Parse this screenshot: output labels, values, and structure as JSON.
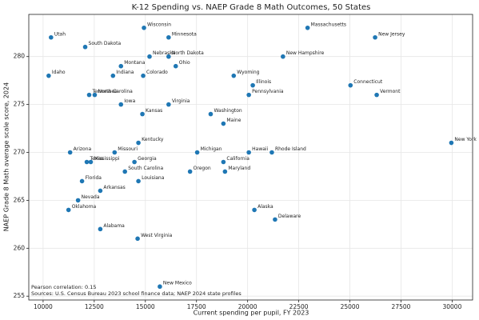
{
  "chart_data": {
    "type": "scatter",
    "title": "K-12 Spending vs. NAEP Grade 8 Math Outcomes, 50 States",
    "x_label": "Current spending per pupil, FY 2023",
    "y_label": "NAEP Grade 8 Math average scale score, 2024",
    "annotations": [
      "Pearson correlation: 0.15",
      "Sources: U.S. Census Bureau 2023 school finance data; NAEP 2024 state profiles"
    ],
    "color": "#1f77b4",
    "grid": true,
    "xlim": [
      9300,
      31000
    ],
    "ylim": [
      254.6,
      284.4
    ],
    "xticks": [
      10000,
      12500,
      15000,
      17500,
      20000,
      22500,
      25000,
      27500,
      30000
    ],
    "yticks": [
      255,
      260,
      265,
      270,
      275,
      280
    ],
    "point_labels": [
      "Utah",
      "South Dakota",
      "Wisconsin",
      "Minnesota",
      "Massachusetts",
      "New Jersey",
      "Nebraska",
      "North Dakota",
      "New Hampshire",
      "Montana",
      "Ohio",
      "Idaho",
      "Indiana",
      "Colorado",
      "Wyoming",
      "Illinois",
      "Connecticut",
      "Tennessee",
      "North Carolina",
      "Pennsylvania",
      "Vermont",
      "Iowa",
      "Virginia",
      "Kansas",
      "Washington",
      "Maine",
      "Kentucky",
      "New York",
      "Arizona",
      "Missouri",
      "Michigan",
      "Hawaii",
      "Rhode Island",
      "Texas",
      "Mississippi",
      "Georgia",
      "California",
      "South Carolina",
      "Oregon",
      "Maryland",
      "Florida",
      "Louisiana",
      "Arkansas",
      "Nevada",
      "Oklahoma",
      "Alaska",
      "Delaware",
      "Alabama",
      "West Virginia",
      "New Mexico"
    ],
    "x": [
      10388,
      12058,
      14932,
      16136,
      22932,
      26233,
      15204,
      16136,
      21728,
      13806,
      16485,
      10272,
      13417,
      14893,
      19320,
      20252,
      25029,
      12252,
      12524,
      20058,
      26311,
      13806,
      16136,
      14854,
      18194,
      18816,
      14660,
      29961,
      11320,
      13495,
      17534,
      20058,
      21184,
      12136,
      12330,
      14466,
      18816,
      14000,
      17184,
      18893,
      11903,
      14660,
      12796,
      11709,
      11243,
      20330,
      21340,
      12796,
      14621,
      15709
    ],
    "values": [
      282,
      281,
      283,
      282,
      283,
      282,
      280,
      280,
      280,
      279,
      279,
      278,
      278,
      278,
      278,
      277,
      277,
      276,
      276,
      276,
      276,
      275,
      275,
      274,
      274,
      273,
      271,
      271,
      270,
      270,
      270,
      270,
      270,
      269,
      269,
      269,
      269,
      268,
      268,
      268,
      267,
      267,
      266,
      265,
      264,
      264,
      263,
      262,
      261,
      256
    ]
  }
}
